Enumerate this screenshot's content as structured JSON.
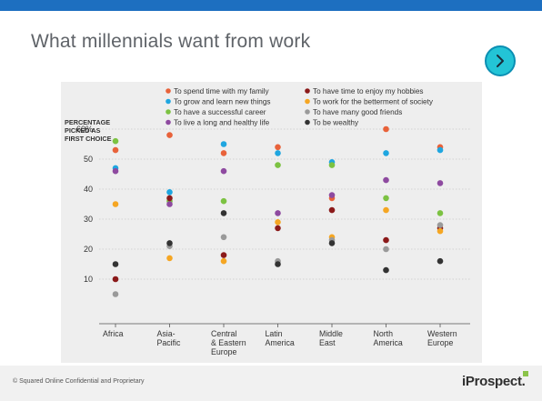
{
  "slide": {
    "title": "What millennials want from work",
    "footer": "© Squared Online Confidential and Proprietary",
    "logo": "iProspect."
  },
  "chart_data": {
    "type": "scatter",
    "ylabel": [
      "PERCENTAGE",
      "PICKED AS",
      "FIRST CHOICE"
    ],
    "ylim": [
      0,
      60
    ],
    "yticks": [
      10,
      20,
      30,
      40,
      50,
      60
    ],
    "ytick_labels": [
      "10",
      "20",
      "30",
      "40",
      "50",
      "60%"
    ],
    "grid": true,
    "legend_position": "top",
    "categories": [
      [
        "Africa"
      ],
      [
        "Asia-",
        "Pacific"
      ],
      [
        "Central",
        "& Eastern",
        "Europe"
      ],
      [
        "Latin",
        "America"
      ],
      [
        "Middle",
        "East"
      ],
      [
        "North",
        "America"
      ],
      [
        "Western",
        "Europe"
      ]
    ],
    "series": [
      {
        "name": "To spend time with my family",
        "color": "#e8623a",
        "values": [
          53,
          58,
          52,
          54,
          37,
          60,
          54
        ]
      },
      {
        "name": "To grow and learn new things",
        "color": "#1fa6e0",
        "values": [
          47,
          39,
          55,
          52,
          49,
          52,
          53
        ]
      },
      {
        "name": "To have a successful career",
        "color": "#7cc242",
        "values": [
          56,
          36,
          36,
          48,
          48,
          37,
          32
        ]
      },
      {
        "name": "To live a long and healthy life",
        "color": "#8e4aa0",
        "values": [
          46,
          35,
          46,
          32,
          38,
          43,
          42
        ]
      },
      {
        "name": "To have time to enjoy my hobbies",
        "color": "#8b1a1a",
        "values": [
          10,
          37,
          18,
          27,
          33,
          23,
          27
        ]
      },
      {
        "name": "To work for the betterment of society",
        "color": "#f5a623",
        "values": [
          35,
          17,
          16,
          29,
          24,
          33,
          26
        ]
      },
      {
        "name": "To have many good friends",
        "color": "#9a9a9a",
        "values": [
          5,
          21,
          24,
          16,
          23,
          20,
          28
        ]
      },
      {
        "name": "To be wealthy",
        "color": "#333333",
        "values": [
          15,
          22,
          32,
          15,
          22,
          13,
          16
        ]
      }
    ]
  }
}
